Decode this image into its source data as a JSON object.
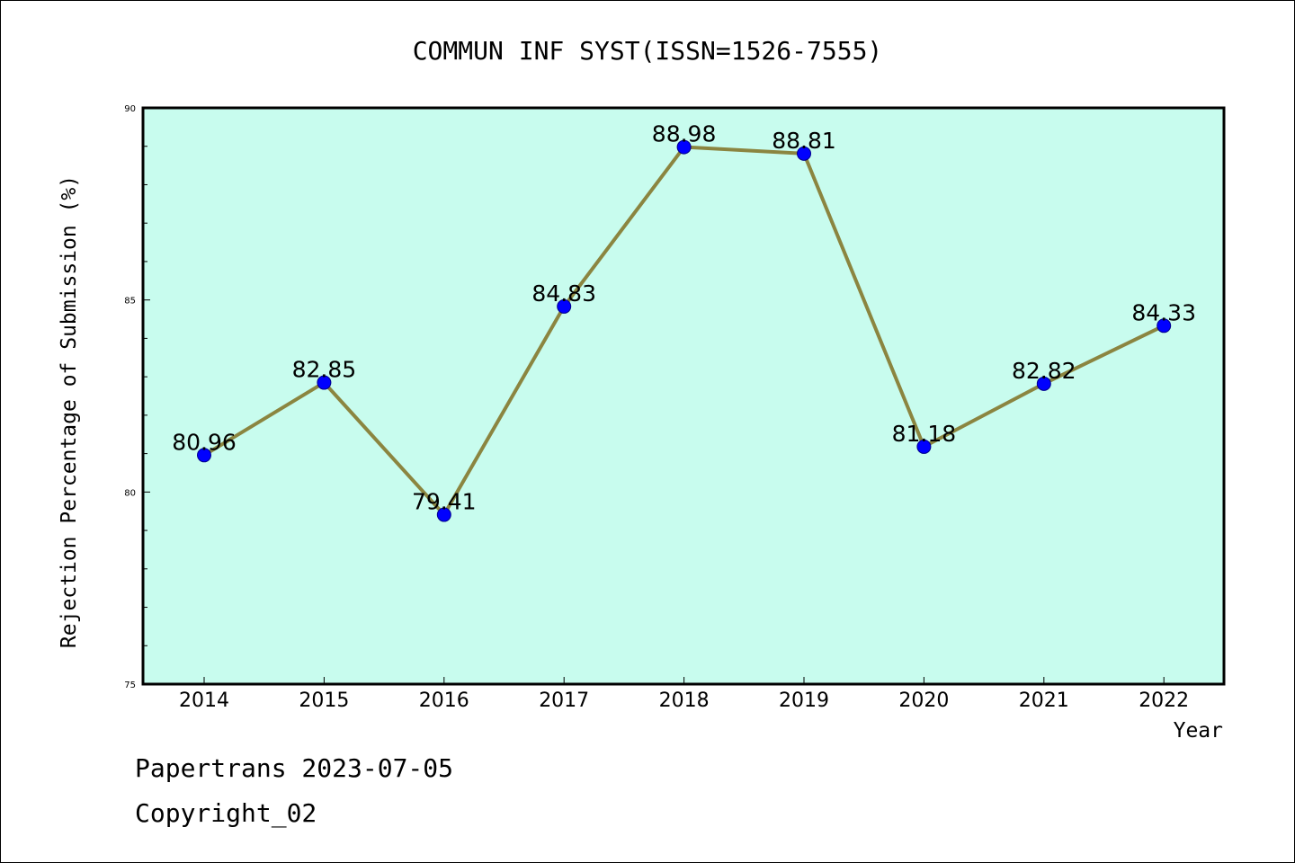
{
  "chart_data": {
    "type": "line",
    "title": "COMMUN INF SYST(ISSN=1526-7555)",
    "xlabel": "Year",
    "ylabel": "Rejection Percentage of Submission (%)",
    "categories": [
      "2014",
      "2015",
      "2016",
      "2017",
      "2018",
      "2019",
      "2020",
      "2021",
      "2022"
    ],
    "values": [
      80.96,
      82.85,
      79.41,
      84.83,
      88.98,
      88.81,
      81.18,
      82.82,
      84.33
    ],
    "value_labels": [
      "80.96",
      "82.85",
      "79.41",
      "84.83",
      "88.98",
      "88.81",
      "81.18",
      "82.82",
      "84.33"
    ],
    "ylim": [
      75,
      90
    ],
    "yticks": [
      "75",
      "80",
      "85",
      "90"
    ],
    "grid": false,
    "colors": {
      "plot_background": "#c8fcee",
      "line": "#8b8540",
      "marker": "#0000ff"
    }
  },
  "footer": {
    "line1": "Papertrans 2023-07-05",
    "line2": "Copyright_02"
  }
}
